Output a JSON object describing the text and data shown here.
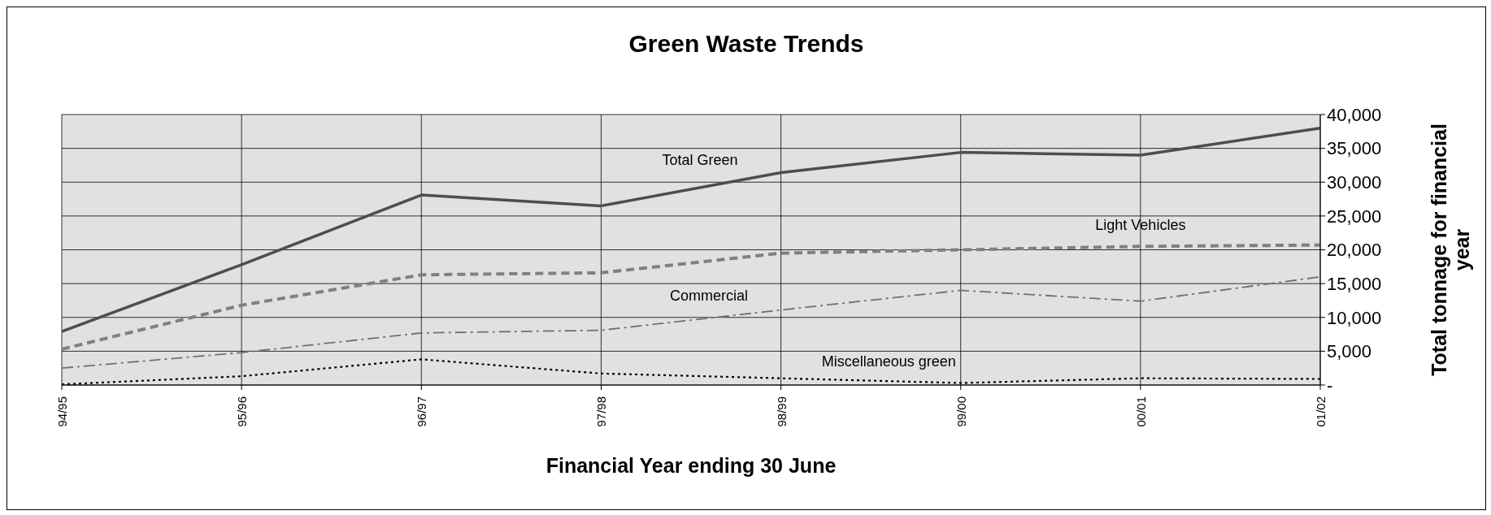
{
  "chart_data": {
    "type": "line",
    "title": "Green Waste Trends",
    "xlabel": "Financial Year ending  30 June",
    "ylabel": "Total tonnage for financial year",
    "categories": [
      "94/95",
      "95/96",
      "96/97",
      "97/98",
      "98/99",
      "99/00",
      "00/01",
      "01/02"
    ],
    "series": [
      {
        "name": "Total Green",
        "color": "#4d4d4d",
        "line_style": "solid",
        "values": [
          7900,
          17800,
          28100,
          26500,
          31400,
          34400,
          34000,
          38000
        ]
      },
      {
        "name": "Light Vehicles",
        "color": "#808080",
        "line_style": "dashed",
        "values": [
          5300,
          11800,
          16300,
          16600,
          19500,
          20000,
          20500,
          20700
        ]
      },
      {
        "name": "Commercial",
        "color": "#707070",
        "line_style": "dashdot",
        "values": [
          2500,
          4800,
          7700,
          8100,
          11100,
          14000,
          12400,
          16000
        ]
      },
      {
        "name": "Miscellaneous green",
        "color": "#000000",
        "line_style": "dotted",
        "values": [
          100,
          1300,
          3800,
          1700,
          1000,
          300,
          1000,
          900
        ]
      }
    ],
    "ylim": [
      0,
      40000
    ],
    "yticks": [
      {
        "value": 0,
        "label": "-"
      },
      {
        "value": 5000,
        "label": "5,000"
      },
      {
        "value": 10000,
        "label": "10,000"
      },
      {
        "value": 15000,
        "label": "15,000"
      },
      {
        "value": 20000,
        "label": "20,000"
      },
      {
        "value": 25000,
        "label": "25,000"
      },
      {
        "value": 30000,
        "label": "30,000"
      },
      {
        "value": 35000,
        "label": "35,000"
      },
      {
        "value": 40000,
        "label": "40,000"
      }
    ],
    "grid": true,
    "legend": false,
    "marker": "none"
  }
}
